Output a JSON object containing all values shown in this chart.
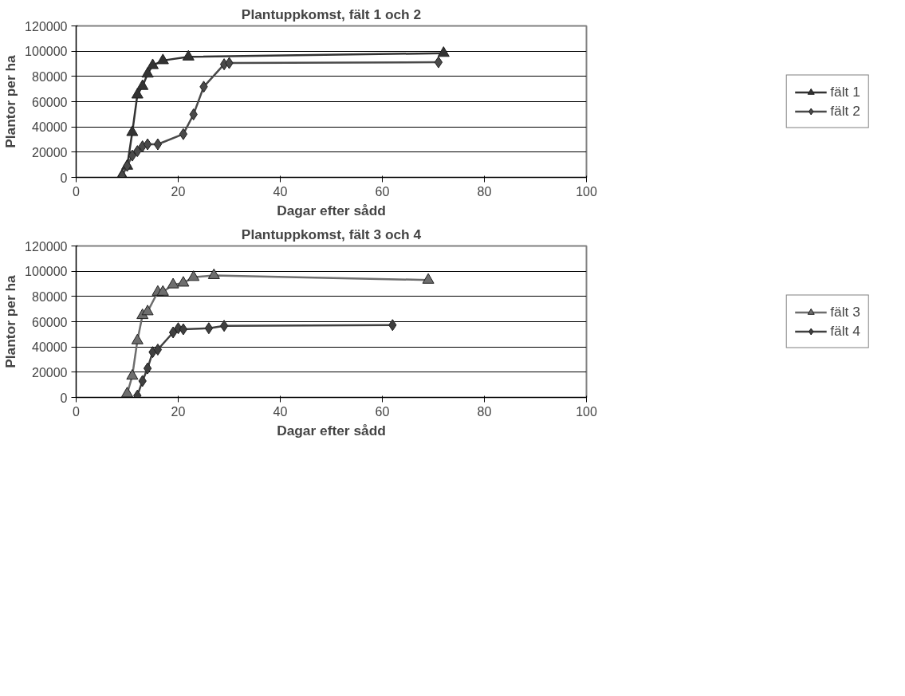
{
  "chart_data": [
    {
      "type": "line",
      "title": "Plantuppkomst, fält 1 och 2",
      "xlabel": "Dagar efter sådd",
      "ylabel": "Plantor per ha",
      "xlim": [
        0,
        100
      ],
      "xticks": [
        0,
        20,
        40,
        60,
        80,
        100
      ],
      "ylim": [
        0,
        120000
      ],
      "yticks": [
        0,
        20000,
        40000,
        60000,
        80000,
        100000,
        120000
      ],
      "grid": "y",
      "legend": "right",
      "line_style": "solid",
      "series": [
        {
          "name": "fält 1",
          "color": "#333333",
          "marker": "triangle",
          "x": [
            9,
            10,
            11,
            12,
            13,
            14,
            15,
            17,
            22,
            72
          ],
          "values": [
            1400,
            9000,
            35700,
            65400,
            72200,
            82000,
            88700,
            92600,
            95500,
            98400
          ]
        },
        {
          "name": "fält 2",
          "color": "#4a4a4a",
          "marker": "diamond",
          "x": [
            9,
            10,
            11,
            12,
            13,
            14,
            16,
            21,
            23,
            25,
            29,
            30,
            71
          ],
          "values": [
            1400,
            9100,
            17300,
            20800,
            24600,
            26200,
            26200,
            34300,
            49900,
            71800,
            89600,
            90600,
            91200
          ]
        }
      ]
    },
    {
      "type": "line",
      "title": "Plantuppkomst, fält 3 och 4",
      "xlabel": "Dagar efter sådd",
      "ylabel": "Plantor per ha",
      "xlim": [
        0,
        100
      ],
      "xticks": [
        0,
        20,
        40,
        60,
        80,
        100
      ],
      "ylim": [
        0,
        120000
      ],
      "yticks": [
        0,
        20000,
        40000,
        60000,
        80000,
        100000,
        120000
      ],
      "grid": "y",
      "legend": "right",
      "line_style": "solid",
      "series": [
        {
          "name": "fält 3",
          "color": "#6e6e6e",
          "marker": "triangle",
          "x": [
            10,
            11,
            12,
            13,
            14,
            16,
            17,
            19,
            21,
            23,
            27,
            69
          ],
          "values": [
            3000,
            17000,
            45000,
            65000,
            68000,
            83500,
            83500,
            89300,
            90700,
            95200,
            96700,
            93000
          ]
        },
        {
          "name": "fält 4",
          "color": "#404040",
          "marker": "diamond",
          "x": [
            12,
            13,
            14,
            15,
            16,
            19,
            20,
            21,
            26,
            29,
            62
          ],
          "values": [
            1500,
            13000,
            23000,
            35900,
            37900,
            51500,
            54800,
            54000,
            54800,
            56700,
            57300
          ]
        }
      ]
    }
  ]
}
